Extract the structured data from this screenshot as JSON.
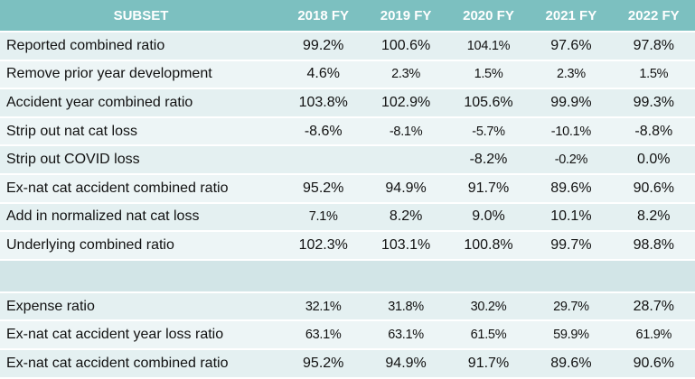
{
  "table": {
    "header": [
      "SUBSET",
      "2018 FY",
      "2019 FY",
      "2020 FY",
      "2021 FY",
      "2022 FY"
    ],
    "rows": [
      {
        "label": "Reported combined ratio",
        "values": [
          "99.2%",
          "100.6%",
          "104.1%",
          "97.6%",
          "97.8%"
        ]
      },
      {
        "label": "Remove prior year development",
        "values": [
          "4.6%",
          "2.3%",
          "1.5%",
          "2.3%",
          "1.5%"
        ]
      },
      {
        "label": "Accident year combined ratio",
        "values": [
          "103.8%",
          "102.9%",
          "105.6%",
          "99.9%",
          "99.3%"
        ]
      },
      {
        "label": "Strip out nat cat loss",
        "values": [
          "-8.6%",
          "-8.1%",
          "-5.7%",
          "-10.1%",
          "-8.8%"
        ]
      },
      {
        "label": "Strip out COVID loss",
        "values": [
          "",
          "",
          "-8.2%",
          "-0.2%",
          "0.0%"
        ]
      },
      {
        "label": "Ex-nat cat accident combined ratio",
        "values": [
          "95.2%",
          "94.9%",
          "91.7%",
          "89.6%",
          "90.6%"
        ]
      },
      {
        "label": "Add in normalized nat cat loss",
        "values": [
          "7.1%",
          "8.2%",
          "9.0%",
          "10.1%",
          "8.2%"
        ]
      },
      {
        "label": "Underlying combined ratio",
        "values": [
          "102.3%",
          "103.1%",
          "100.8%",
          "99.7%",
          "98.8%"
        ]
      }
    ],
    "rows2": [
      {
        "label": "Expense ratio",
        "values": [
          "32.1%",
          "31.8%",
          "30.2%",
          "29.7%",
          "28.7%"
        ]
      },
      {
        "label": "Ex-nat cat accident year loss ratio",
        "values": [
          "63.1%",
          "63.1%",
          "61.5%",
          "59.9%",
          "61.9%"
        ]
      },
      {
        "label": "Ex-nat cat accident combined ratio",
        "values": [
          "95.2%",
          "94.9%",
          "91.7%",
          "89.6%",
          "90.6%"
        ]
      }
    ]
  }
}
